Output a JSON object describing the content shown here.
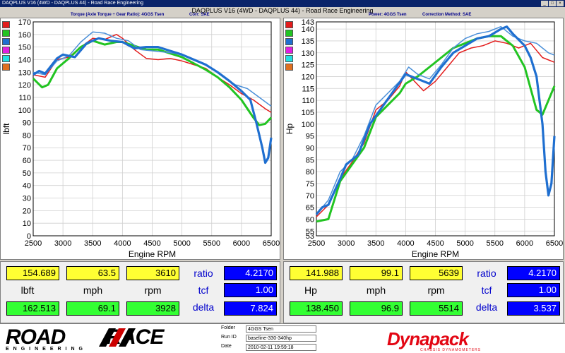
{
  "window": {
    "title": "DAQPLUS V16 (4WD - DAQPLUS 44) - Road Race Engineering",
    "controls": [
      "_",
      "□",
      "×"
    ]
  },
  "document_title": "DAQPLUS V16 (4WD - DAQPLUS 44) - Road Race Engineering",
  "left_chart": {
    "subtitle": "Torque (Axle Torque ÷ Gear Ratio): 4GGS Tsen",
    "corr": "Corr: SAE"
  },
  "right_chart": {
    "subtitle": "Power: 4GGS Tsen",
    "corr": "Correction Method: SAE"
  },
  "color_legend": [
    "#e31c1c",
    "#22c422",
    "#1f6fd0",
    "#e020e0",
    "#22e0e0",
    "#e07020"
  ],
  "chart_data": [
    {
      "type": "line",
      "xlabel": "Engine RPM",
      "ylabel": "lbft",
      "xlim": [
        2500,
        6500
      ],
      "ylim": [
        0,
        170
      ],
      "xticks": [
        2500,
        3000,
        3500,
        4000,
        4500,
        5000,
        5500,
        6000,
        6500
      ],
      "yticks": [
        0,
        10,
        20,
        30,
        40,
        50,
        60,
        70,
        80,
        90,
        100,
        110,
        120,
        130,
        140,
        150,
        160,
        170
      ],
      "series": [
        {
          "color": "#e31c1c",
          "width": 1.5,
          "points": [
            [
              2500,
              128
            ],
            [
              2700,
              126
            ],
            [
              2900,
              140
            ],
            [
              3100,
              142
            ],
            [
              3300,
              150
            ],
            [
              3500,
              157
            ],
            [
              3700,
              156
            ],
            [
              3900,
              160
            ],
            [
              4000,
              157
            ],
            [
              4200,
              148
            ],
            [
              4400,
              141
            ],
            [
              4600,
              140
            ],
            [
              4800,
              141
            ],
            [
              5000,
              139
            ],
            [
              5200,
              136
            ],
            [
              5400,
              133
            ],
            [
              5600,
              126
            ],
            [
              5800,
              120
            ],
            [
              6000,
              113
            ],
            [
              6200,
              108
            ],
            [
              6400,
              101
            ],
            [
              6500,
              98
            ]
          ]
        },
        {
          "color": "#22c422",
          "width": 3,
          "points": [
            [
              2500,
              125
            ],
            [
              2650,
              118
            ],
            [
              2750,
              120
            ],
            [
              2900,
              133
            ],
            [
              3100,
              141
            ],
            [
              3300,
              150
            ],
            [
              3500,
              155
            ],
            [
              3700,
              152
            ],
            [
              3900,
              154
            ],
            [
              4000,
              154
            ],
            [
              4200,
              151
            ],
            [
              4400,
              148
            ],
            [
              4600,
              148
            ],
            [
              4800,
              145
            ],
            [
              5000,
              142
            ],
            [
              5200,
              137
            ],
            [
              5400,
              132
            ],
            [
              5600,
              126
            ],
            [
              5800,
              118
            ],
            [
              6000,
              108
            ],
            [
              6200,
              94
            ],
            [
              6300,
              88
            ],
            [
              6400,
              89
            ],
            [
              6500,
              94
            ]
          ]
        },
        {
          "color": "#4a8fd8",
          "width": 1.5,
          "points": [
            [
              2500,
              130
            ],
            [
              2700,
              128
            ],
            [
              2900,
              139
            ],
            [
              3100,
              143
            ],
            [
              3300,
              154
            ],
            [
              3500,
              162
            ],
            [
              3700,
              161
            ],
            [
              3900,
              157
            ],
            [
              4100,
              155
            ],
            [
              4300,
              148
            ],
            [
              4500,
              147
            ],
            [
              4700,
              146
            ],
            [
              4900,
              145
            ],
            [
              5100,
              142
            ],
            [
              5300,
              138
            ],
            [
              5500,
              133
            ],
            [
              5700,
              126
            ],
            [
              5900,
              120
            ],
            [
              6100,
              117
            ],
            [
              6300,
              110
            ],
            [
              6500,
              103
            ]
          ]
        },
        {
          "color": "#1f6fd0",
          "width": 3.2,
          "points": [
            [
              2500,
              128
            ],
            [
              2600,
              131
            ],
            [
              2700,
              129
            ],
            [
              2900,
              141
            ],
            [
              3000,
              144
            ],
            [
              3200,
              142
            ],
            [
              3400,
              153
            ],
            [
              3600,
              157
            ],
            [
              3800,
              155
            ],
            [
              4000,
              154
            ],
            [
              4200,
              149
            ],
            [
              4400,
              150
            ],
            [
              4600,
              150
            ],
            [
              4800,
              147
            ],
            [
              5000,
              144
            ],
            [
              5200,
              140
            ],
            [
              5400,
              136
            ],
            [
              5600,
              130
            ],
            [
              5800,
              123
            ],
            [
              6000,
              115
            ],
            [
              6150,
              108
            ],
            [
              6250,
              90
            ],
            [
              6350,
              70
            ],
            [
              6400,
              58
            ],
            [
              6450,
              62
            ],
            [
              6500,
              78
            ]
          ]
        }
      ]
    },
    {
      "type": "line",
      "xlabel": "Engine RPM",
      "ylabel": "Hp",
      "xlim": [
        2500,
        6500
      ],
      "ylim": [
        53,
        143
      ],
      "xticks": [
        2500,
        3000,
        3500,
        4000,
        4500,
        5000,
        5500,
        6000,
        6500
      ],
      "yticks": [
        53,
        55,
        60,
        65,
        70,
        75,
        80,
        85,
        90,
        95,
        100,
        105,
        110,
        115,
        120,
        125,
        130,
        135,
        140,
        143
      ],
      "series": [
        {
          "color": "#e31c1c",
          "width": 1.5,
          "points": [
            [
              2500,
              61
            ],
            [
              2700,
              66
            ],
            [
              2900,
              77
            ],
            [
              3100,
              84
            ],
            [
              3300,
              92
            ],
            [
              3500,
              106
            ],
            [
              3700,
              110
            ],
            [
              3900,
              116
            ],
            [
              4000,
              122
            ],
            [
              4150,
              118
            ],
            [
              4300,
              114
            ],
            [
              4500,
              118
            ],
            [
              4700,
              124
            ],
            [
              4900,
              130
            ],
            [
              5100,
              132
            ],
            [
              5300,
              133
            ],
            [
              5500,
              135
            ],
            [
              5700,
              134
            ],
            [
              5900,
              132
            ],
            [
              6100,
              134
            ],
            [
              6300,
              128
            ],
            [
              6500,
              126
            ]
          ]
        },
        {
          "color": "#22c422",
          "width": 3,
          "points": [
            [
              2500,
              59
            ],
            [
              2700,
              60
            ],
            [
              2900,
              76
            ],
            [
              3100,
              83
            ],
            [
              3300,
              90
            ],
            [
              3500,
              103
            ],
            [
              3700,
              108
            ],
            [
              3900,
              113
            ],
            [
              4000,
              117
            ],
            [
              4200,
              120
            ],
            [
              4400,
              124
            ],
            [
              4600,
              128
            ],
            [
              4800,
              132
            ],
            [
              5000,
              134
            ],
            [
              5200,
              136
            ],
            [
              5400,
              137
            ],
            [
              5600,
              137
            ],
            [
              5800,
              133
            ],
            [
              6000,
              124
            ],
            [
              6200,
              106
            ],
            [
              6300,
              104
            ],
            [
              6400,
              110
            ],
            [
              6500,
              116
            ]
          ]
        },
        {
          "color": "#4a8fd8",
          "width": 1.5,
          "points": [
            [
              2500,
              62
            ],
            [
              2700,
              68
            ],
            [
              2900,
              80
            ],
            [
              3100,
              85
            ],
            [
              3300,
              95
            ],
            [
              3500,
              108
            ],
            [
              3700,
              113
            ],
            [
              3900,
              118
            ],
            [
              4050,
              124
            ],
            [
              4200,
              121
            ],
            [
              4400,
              119
            ],
            [
              4600,
              125
            ],
            [
              4800,
              132
            ],
            [
              5000,
              136
            ],
            [
              5200,
              138
            ],
            [
              5400,
              139
            ],
            [
              5600,
              141
            ],
            [
              5800,
              137
            ],
            [
              6000,
              135
            ],
            [
              6200,
              134
            ],
            [
              6400,
              130
            ],
            [
              6500,
              129
            ]
          ]
        },
        {
          "color": "#1f6fd0",
          "width": 3.2,
          "points": [
            [
              2500,
              62
            ],
            [
              2600,
              65
            ],
            [
              2700,
              66
            ],
            [
              2900,
              77
            ],
            [
              3000,
              83
            ],
            [
              3200,
              87
            ],
            [
              3400,
              100
            ],
            [
              3600,
              107
            ],
            [
              3800,
              114
            ],
            [
              4000,
              121
            ],
            [
              4200,
              119
            ],
            [
              4400,
              117
            ],
            [
              4600,
              124
            ],
            [
              4800,
              130
            ],
            [
              5000,
              133
            ],
            [
              5200,
              136
            ],
            [
              5400,
              137
            ],
            [
              5600,
              140
            ],
            [
              5700,
              141
            ],
            [
              5800,
              138
            ],
            [
              6000,
              133
            ],
            [
              6100,
              128
            ],
            [
              6200,
              120
            ],
            [
              6300,
              100
            ],
            [
              6350,
              80
            ],
            [
              6400,
              70
            ],
            [
              6450,
              75
            ],
            [
              6500,
              95
            ]
          ]
        }
      ]
    }
  ],
  "left_readout": {
    "row1": [
      "154.689",
      "63.5",
      "3610"
    ],
    "labels": [
      "lbft",
      "mph",
      "rpm"
    ],
    "row2": [
      "162.513",
      "69.1",
      "3928"
    ],
    "side_labels": [
      "ratio",
      "tcf",
      "delta"
    ],
    "side_values": [
      "4.2170",
      "1.00",
      "7.824"
    ]
  },
  "right_readout": {
    "row1": [
      "141.988",
      "99.1",
      "5639"
    ],
    "labels": [
      "Hp",
      "mph",
      "rpm"
    ],
    "row2": [
      "138.450",
      "96.9",
      "5514"
    ],
    "side_labels": [
      "ratio",
      "tcf",
      "delta"
    ],
    "side_values": [
      "4.2170",
      "1.00",
      "3.537"
    ]
  },
  "footer": {
    "logo_left": "ROAD",
    "logo_right": "RACE",
    "logo_sub": "ENGINEERING",
    "meta": [
      {
        "key": "Folder",
        "value": "4GGS Tsen"
      },
      {
        "key": "Run ID",
        "value": "baseline-330-340hp"
      },
      {
        "key": "Date",
        "value": "2010-02-11 19:59:18"
      }
    ],
    "brand": "Dynapack",
    "brand_sub": "CHASSIS DYNAMOMETERS"
  }
}
